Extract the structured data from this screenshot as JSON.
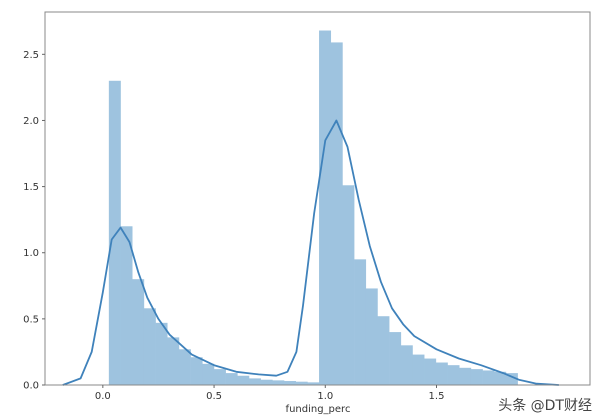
{
  "chart_data": {
    "type": "bar",
    "subtype": "histogram with kde line",
    "title": "",
    "xlabel": "funding_perc",
    "ylabel": "",
    "xlim": [
      -0.26,
      2.19
    ],
    "ylim": [
      0,
      2.82
    ],
    "xticks": [
      "0.0",
      "0.5",
      "1.0",
      "1.5"
    ],
    "xtick_values": [
      0,
      0.5,
      1.0,
      1.5
    ],
    "yticks": [
      "0.0",
      "0.5",
      "1.0",
      "1.5",
      "2.0",
      "2.5"
    ],
    "ytick_values": [
      0,
      0.5,
      1.0,
      1.5,
      2.0,
      2.5
    ],
    "grid": false,
    "bins": {
      "start": 0.027,
      "width": 0.0525,
      "values": [
        2.3,
        1.2,
        0.8,
        0.58,
        0.47,
        0.36,
        0.27,
        0.21,
        0.16,
        0.12,
        0.09,
        0.07,
        0.05,
        0.04,
        0.035,
        0.03,
        0.025,
        0.02,
        2.68,
        2.59,
        1.51,
        0.95,
        0.73,
        0.52,
        0.4,
        0.3,
        0.23,
        0.2,
        0.17,
        0.15,
        0.13,
        0.12,
        0.11,
        0.1,
        0.09
      ]
    },
    "kde": {
      "x": [
        -0.18,
        -0.1,
        -0.05,
        0,
        0.04,
        0.08,
        0.12,
        0.16,
        0.2,
        0.25,
        0.3,
        0.4,
        0.5,
        0.6,
        0.7,
        0.78,
        0.83,
        0.87,
        0.9,
        0.95,
        1.0,
        1.05,
        1.1,
        1.15,
        1.2,
        1.25,
        1.3,
        1.35,
        1.4,
        1.5,
        1.6,
        1.7,
        1.8,
        1.87,
        1.95,
        2.05
      ],
      "y": [
        0,
        0.05,
        0.25,
        0.7,
        1.1,
        1.19,
        1.08,
        0.85,
        0.66,
        0.5,
        0.38,
        0.23,
        0.15,
        0.1,
        0.08,
        0.07,
        0.1,
        0.25,
        0.6,
        1.3,
        1.85,
        2.0,
        1.8,
        1.4,
        1.05,
        0.78,
        0.58,
        0.46,
        0.37,
        0.27,
        0.2,
        0.15,
        0.09,
        0.04,
        0.01,
        0
      ]
    },
    "colors": {
      "bar": "#9ec3df",
      "line": "#3f82bb",
      "frame": "#888888"
    }
  },
  "watermark": "头条 @DT财经"
}
